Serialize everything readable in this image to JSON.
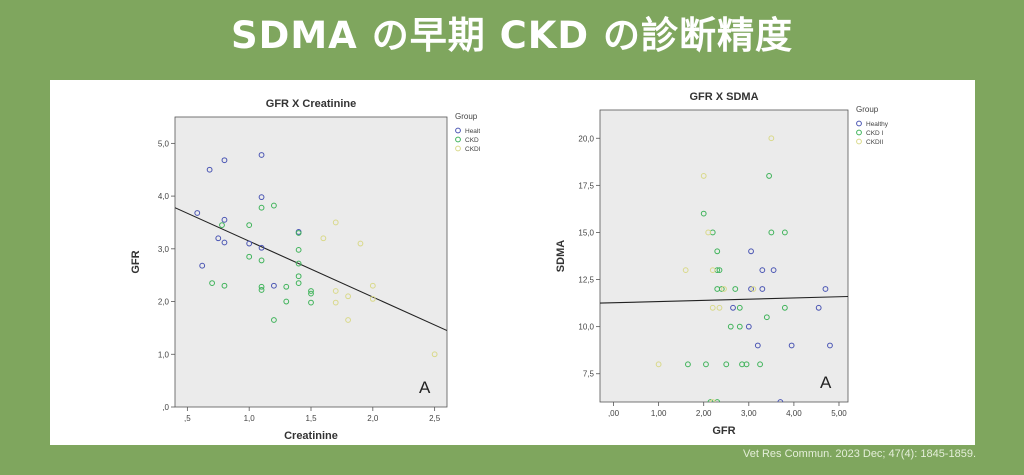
{
  "slide": {
    "title": "SDMA の早期 CKD の診断精度",
    "citation": "Vet Res Commun. 2023 Dec; 47(4): 1845-1859."
  },
  "colors": {
    "background": "#7fa65e",
    "healthy": "#4a55b3",
    "ckd1": "#3fb35a",
    "ckd2": "#d9d98a",
    "plot_bg": "#ebebeb",
    "fit_line": "#222222"
  },
  "chart_data": [
    {
      "type": "scatter",
      "title": "GFR X Creatinine",
      "xlabel": "Creatinine",
      "ylabel": "GFR",
      "xlim": [
        0.4,
        2.6
      ],
      "ylim": [
        0,
        5.5
      ],
      "x_ticks": [
        0.5,
        1.0,
        1.5,
        2.0,
        2.5
      ],
      "x_tick_labels": [
        ",5",
        "1,0",
        "1,5",
        "2,0",
        "2,5"
      ],
      "y_ticks": [
        0,
        1,
        2,
        3,
        4,
        5
      ],
      "y_tick_labels": [
        ",0",
        "1,0",
        "2,0",
        "3,0",
        "4,0",
        "5,0"
      ],
      "legend": {
        "title": "Group",
        "entries": [
          "Healthy",
          "CKD I",
          "CKDII"
        ],
        "position": "right"
      },
      "panel_label": "A",
      "fit_line": {
        "x": [
          0.4,
          2.6
        ],
        "y": [
          3.78,
          1.45
        ]
      },
      "series": [
        {
          "name": "Healthy",
          "points": [
            [
              0.58,
              3.68
            ],
            [
              0.62,
              2.68
            ],
            [
              0.68,
              4.5
            ],
            [
              0.8,
              4.68
            ],
            [
              1.1,
              4.78
            ],
            [
              0.8,
              3.55
            ],
            [
              0.8,
              3.12
            ],
            [
              0.75,
              3.2
            ],
            [
              1.1,
              3.98
            ],
            [
              1.0,
              3.1
            ],
            [
              1.1,
              3.02
            ],
            [
              1.2,
              2.3
            ],
            [
              1.4,
              3.32
            ]
          ]
        },
        {
          "name": "CKD I",
          "points": [
            [
              0.78,
              3.45
            ],
            [
              1.0,
              3.45
            ],
            [
              1.1,
              3.78
            ],
            [
              1.2,
              3.82
            ],
            [
              1.4,
              3.3
            ],
            [
              1.1,
              2.78
            ],
            [
              1.0,
              2.85
            ],
            [
              1.4,
              2.98
            ],
            [
              1.4,
              2.72
            ],
            [
              1.4,
              2.48
            ],
            [
              0.7,
              2.35
            ],
            [
              0.8,
              2.3
            ],
            [
              1.1,
              2.28
            ],
            [
              1.1,
              2.22
            ],
            [
              1.3,
              2.28
            ],
            [
              1.4,
              2.35
            ],
            [
              1.5,
              2.2
            ],
            [
              1.5,
              2.15
            ],
            [
              1.3,
              2.0
            ],
            [
              1.2,
              1.65
            ],
            [
              1.5,
              1.98
            ]
          ]
        },
        {
          "name": "CKDII",
          "points": [
            [
              1.6,
              3.2
            ],
            [
              1.7,
              3.5
            ],
            [
              1.9,
              3.1
            ],
            [
              1.7,
              2.2
            ],
            [
              1.8,
              2.1
            ],
            [
              2.0,
              2.3
            ],
            [
              2.0,
              2.05
            ],
            [
              1.7,
              1.98
            ],
            [
              1.8,
              1.65
            ],
            [
              2.5,
              1.0
            ]
          ]
        }
      ]
    },
    {
      "type": "scatter",
      "title": "GFR X SDMA",
      "xlabel": "GFR",
      "ylabel": "SDMA",
      "xlim": [
        -0.3,
        5.2
      ],
      "ylim": [
        6.0,
        21.5
      ],
      "x_ticks": [
        0,
        1,
        2,
        3,
        4,
        5
      ],
      "x_tick_labels": [
        ",00",
        "1,00",
        "2,00",
        "3,00",
        "4,00",
        "5,00"
      ],
      "y_ticks": [
        7.5,
        10,
        12.5,
        15,
        17.5,
        20
      ],
      "y_tick_labels": [
        "7,5",
        "10,0",
        "12,5",
        "15,0",
        "17,5",
        "20,0"
      ],
      "legend": {
        "title": "Group",
        "entries": [
          "Healthy",
          "CKD I",
          "CKDII"
        ],
        "position": "right"
      },
      "panel_label": "A",
      "fit_line": {
        "x": [
          -0.3,
          5.2
        ],
        "y": [
          11.25,
          11.6
        ]
      },
      "series": [
        {
          "name": "Healthy",
          "points": [
            [
              3.05,
              14.0
            ],
            [
              3.3,
              13.0
            ],
            [
              3.55,
              13.0
            ],
            [
              3.05,
              12.0
            ],
            [
              3.3,
              12.0
            ],
            [
              4.7,
              12.0
            ],
            [
              2.65,
              11.0
            ],
            [
              4.55,
              11.0
            ],
            [
              3.0,
              10.0
            ],
            [
              3.2,
              9.0
            ],
            [
              3.95,
              9.0
            ],
            [
              4.8,
              9.0
            ],
            [
              3.7,
              6.0
            ]
          ]
        },
        {
          "name": "CKD I",
          "points": [
            [
              2.0,
              16.0
            ],
            [
              2.2,
              15.0
            ],
            [
              2.3,
              14.0
            ],
            [
              2.3,
              13.0
            ],
            [
              2.35,
              13.0
            ],
            [
              2.3,
              12.0
            ],
            [
              2.4,
              12.0
            ],
            [
              2.7,
              12.0
            ],
            [
              2.8,
              11.0
            ],
            [
              2.6,
              10.0
            ],
            [
              2.8,
              10.0
            ],
            [
              3.4,
              10.5
            ],
            [
              3.45,
              18.0
            ],
            [
              3.5,
              15.0
            ],
            [
              3.8,
              15.0
            ],
            [
              3.8,
              11.0
            ],
            [
              1.65,
              8.0
            ],
            [
              2.05,
              8.0
            ],
            [
              2.5,
              8.0
            ],
            [
              2.85,
              8.0
            ],
            [
              2.95,
              8.0
            ],
            [
              3.25,
              8.0
            ],
            [
              2.15,
              6.0
            ],
            [
              2.3,
              6.0
            ]
          ]
        },
        {
          "name": "CKDII",
          "points": [
            [
              2.0,
              18.0
            ],
            [
              3.5,
              20.0
            ],
            [
              1.0,
              8.0
            ],
            [
              1.6,
              13.0
            ],
            [
              2.1,
              15.0
            ],
            [
              2.2,
              13.0
            ],
            [
              2.2,
              11.0
            ],
            [
              2.35,
              11.0
            ],
            [
              2.45,
              12.0
            ],
            [
              3.1,
              12.0
            ],
            [
              2.2,
              6.0
            ]
          ]
        }
      ]
    }
  ]
}
